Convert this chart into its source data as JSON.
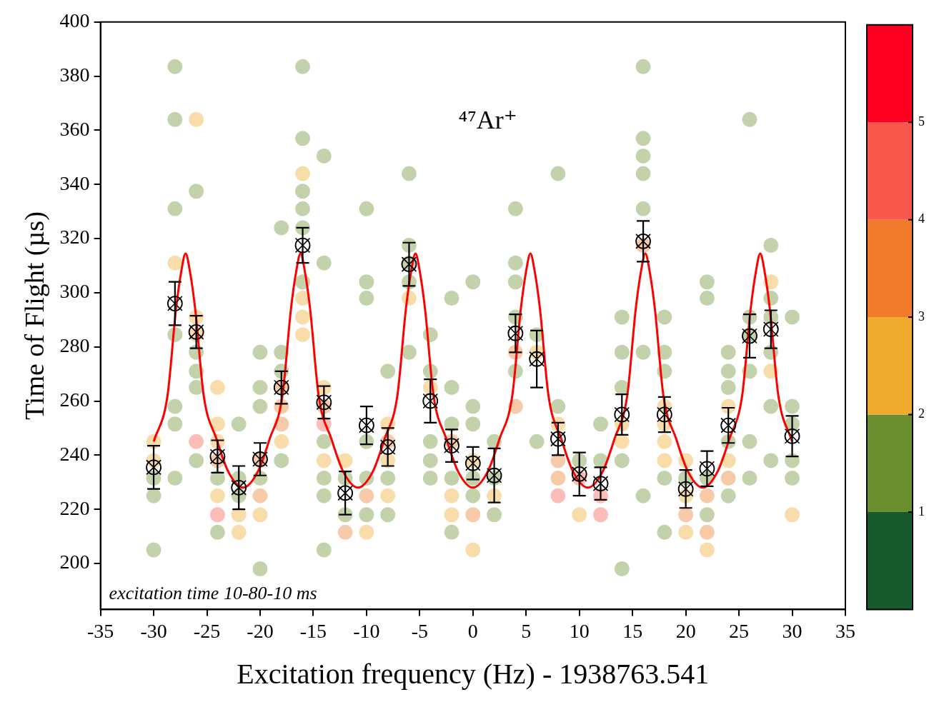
{
  "chart_data": {
    "type": "scatter",
    "xlabel": "Excitation frequency (Hz) - 1938763.541",
    "ylabel": "Time of Flight (µs)",
    "annotations": [
      "⁴⁷Ar⁺",
      "excitation time 10-80-10 ms"
    ],
    "xlim": [
      -35,
      35
    ],
    "xticks": [
      -35,
      -30,
      -25,
      -20,
      -15,
      -10,
      -5,
      0,
      5,
      10,
      15,
      20,
      25,
      30,
      35
    ],
    "ylim": [
      183,
      400
    ],
    "yticks": [
      200,
      220,
      240,
      260,
      280,
      300,
      320,
      340,
      360,
      380,
      400
    ],
    "clim": [
      0,
      6
    ],
    "cticks": [
      1,
      2,
      3,
      4,
      5
    ],
    "grid": false,
    "legend": false,
    "x": [
      -30,
      -28,
      -26,
      -24,
      -22,
      -20,
      -18,
      -16,
      -14,
      -12,
      -10,
      -8,
      -6,
      -4,
      -2,
      0,
      2,
      4,
      6,
      8,
      10,
      12,
      14,
      16,
      18,
      20,
      22,
      24,
      26,
      28,
      30
    ],
    "series": [
      {
        "type": "scatter",
        "marker": "circle",
        "x": [
          -30,
          -30,
          -30,
          -30,
          -30,
          -28,
          -28,
          -28,
          -28,
          -28,
          -28,
          -28,
          -28,
          -26,
          -26,
          -26,
          -26,
          -26,
          -26,
          -26,
          -26,
          -26,
          -24,
          -24,
          -24,
          -24,
          -24,
          -24,
          -24,
          -24,
          -22,
          -22,
          -22,
          -22,
          -22,
          -20,
          -20,
          -20,
          -20,
          -20,
          -20,
          -20,
          -20,
          -18,
          -18,
          -18,
          -18,
          -18,
          -18,
          -18,
          -18,
          -16,
          -16,
          -16,
          -16,
          -16,
          -16,
          -16,
          -16,
          -16,
          -16,
          -14,
          -14,
          -14,
          -14,
          -14,
          -14,
          -14,
          -14,
          -14,
          -14,
          -12,
          -12,
          -12,
          -12,
          -10,
          -10,
          -10,
          -10,
          -10,
          -10,
          -10,
          -10,
          -8,
          -8,
          -8,
          -8,
          -8,
          -8,
          -8,
          -6,
          -6,
          -6,
          -6,
          -6,
          -6,
          -4,
          -4,
          -4,
          -4,
          -4,
          -4,
          -2,
          -2,
          -2,
          -2,
          -2,
          -2,
          -2,
          -2,
          0,
          0,
          0,
          0,
          0,
          0,
          0,
          0,
          2,
          2,
          2,
          2,
          4,
          4,
          4,
          4,
          4,
          4,
          4,
          6,
          6,
          6,
          8,
          8,
          8,
          8,
          8,
          8,
          10,
          10,
          10,
          12,
          12,
          12,
          12,
          14,
          14,
          14,
          14,
          14,
          14,
          14,
          16,
          16,
          16,
          16,
          16,
          16,
          16,
          16,
          18,
          18,
          18,
          18,
          18,
          18,
          18,
          18,
          18,
          20,
          20,
          20,
          20,
          20,
          22,
          22,
          22,
          22,
          22,
          22,
          22,
          24,
          24,
          24,
          24,
          24,
          24,
          24,
          24,
          26,
          26,
          26,
          26,
          26,
          26,
          28,
          28,
          28,
          28,
          28,
          28,
          28,
          28,
          30,
          30,
          30,
          30,
          30,
          30
        ],
        "values": [
          245,
          238,
          231.5,
          225,
          205,
          383.5,
          364,
          331,
          311,
          284.5,
          258,
          251.5,
          231.5,
          364,
          337.5,
          291,
          284.5,
          278,
          271,
          265,
          245,
          238,
          265,
          251.5,
          245,
          238,
          231.5,
          225,
          218,
          211.5,
          251.5,
          231.5,
          225,
          218,
          211.5,
          278,
          265,
          258,
          238,
          231.5,
          225,
          218,
          198,
          324,
          278,
          271,
          265,
          258,
          251.5,
          245,
          238,
          383.5,
          357,
          344,
          337.5,
          331,
          324,
          304,
          298,
          291,
          284.5,
          350.5,
          311,
          265,
          258,
          251.5,
          245,
          238,
          231.5,
          225,
          205,
          238,
          231.5,
          218,
          211.5,
          331,
          304,
          298,
          245,
          231.5,
          225,
          218,
          211.5,
          271,
          251.5,
          245,
          238,
          231.5,
          225,
          218,
          344,
          317.5,
          311,
          304,
          298,
          278,
          284.5,
          271,
          265,
          245,
          238,
          231.5,
          298,
          265,
          251.5,
          245,
          231.5,
          225,
          218,
          211.5,
          304,
          258,
          251.5,
          238,
          231.5,
          225,
          218,
          205,
          245,
          231.5,
          225,
          218,
          331,
          311,
          304,
          291,
          278,
          271,
          258,
          284.5,
          278,
          245,
          344,
          258,
          251.5,
          238,
          231.5,
          225,
          238,
          231.5,
          218,
          251.5,
          238,
          225,
          218,
          291,
          278,
          265,
          251.5,
          245,
          238,
          198,
          383.5,
          357,
          350.5,
          344,
          331,
          317.5,
          278,
          225,
          291,
          278,
          271,
          258,
          251.5,
          245,
          238,
          231.5,
          211.5,
          238,
          231.5,
          225,
          218,
          211.5,
          304,
          298,
          231.5,
          225,
          218,
          211.5,
          205,
          278,
          271,
          265,
          258,
          245,
          238,
          231.5,
          225,
          364,
          291,
          284.5,
          271,
          245,
          231.5,
          317.5,
          304,
          298,
          291,
          278,
          271,
          258,
          238,
          291,
          258,
          251.5,
          238,
          231.5,
          218
        ],
        "colors": [
          "#f8ddab",
          "#f8ddab",
          "#c4d2ab",
          "#c4d2ab",
          "#c4d2ab",
          "#c4d2ab",
          "#c4d2ab",
          "#c4d2ab",
          "#f8ddab",
          "#c4d2ab",
          "#c4d2ab",
          "#c4d2ab",
          "#c4d2ab",
          "#f8ddab",
          "#c4d2ab",
          "#f8ddab",
          "#f8ddab",
          "#c4d2ab",
          "#c4d2ab",
          "#c4d2ab",
          "#fcbcb7",
          "#c4d2ab",
          "#f8ddab",
          "#f8ddab",
          "#f8ddab",
          "#f7caaa",
          "#c4d2ab",
          "#f8ddab",
          "#fcbcb7",
          "#c4d2ab",
          "#c4d2ab",
          "#c4d2ab",
          "#c4d2ab",
          "#f8ddab",
          "#f8ddab",
          "#c4d2ab",
          "#c4d2ab",
          "#c4d2ab",
          "#f7caaa",
          "#c4d2ab",
          "#f7caaa",
          "#f8ddab",
          "#c4d2ab",
          "#c4d2ab",
          "#c4d2ab",
          "#c4d2ab",
          "#f7caaa",
          "#f7caaa",
          "#f7caaa",
          "#f8ddab",
          "#c4d2ab",
          "#c4d2ab",
          "#c4d2ab",
          "#f8ddab",
          "#c4d2ab",
          "#c4d2ab",
          "#c4d2ab",
          "#c4d2ab",
          "#f8ddab",
          "#f8ddab",
          "#f8ddab",
          "#c4d2ab",
          "#c4d2ab",
          "#f8ddab",
          "#f7caaa",
          "#fcbcb7",
          "#c4d2ab",
          "#f8ddab",
          "#c4d2ab",
          "#c4d2ab",
          "#c4d2ab",
          "#f8ddab",
          "#c4d2ab",
          "#c4d2ab",
          "#f7caaa",
          "#c4d2ab",
          "#c4d2ab",
          "#c4d2ab",
          "#c4d2ab",
          "#c4d2ab",
          "#f7caaa",
          "#c4d2ab",
          "#f8ddab",
          "#c4d2ab",
          "#f8ddab",
          "#f7caaa",
          "#f8ddab",
          "#c4d2ab",
          "#f8ddab",
          "#c4d2ab",
          "#c4d2ab",
          "#c4d2ab",
          "#c4d2ab",
          "#c4d2ab",
          "#f8ddab",
          "#c4d2ab",
          "#c4d2ab",
          "#c4d2ab",
          "#f8ddab",
          "#c4d2ab",
          "#c4d2ab",
          "#c4d2ab",
          "#c4d2ab",
          "#c4d2ab",
          "#c4d2ab",
          "#f7caaa",
          "#c4d2ab",
          "#f8ddab",
          "#f8ddab",
          "#c4d2ab",
          "#c4d2ab",
          "#c4d2ab",
          "#c4d2ab",
          "#f8ddab",
          "#c4d2ab",
          "#c4d2ab",
          "#f7caaa",
          "#f8ddab",
          "#c4d2ab",
          "#c4d2ab",
          "#f8ddab",
          "#c4d2ab",
          "#c4d2ab",
          "#c4d2ab",
          "#c4d2ab",
          "#c4d2ab",
          "#f7caaa",
          "#c4d2ab",
          "#f7caaa",
          "#c4d2ab",
          "#f8ddab",
          "#c4d2ab",
          "#c4d2ab",
          "#c4d2ab",
          "#f8ddab",
          "#f7caaa",
          "#f7caaa",
          "#fcbcb7",
          "#c4d2ab",
          "#fcbcb7",
          "#f8ddab",
          "#c4d2ab",
          "#c4d2ab",
          "#fcbcb7",
          "#fcbcb7",
          "#c4d2ab",
          "#c4d2ab",
          "#c4d2ab",
          "#f8ddab",
          "#f8ddab",
          "#c4d2ab",
          "#c4d2ab",
          "#c4d2ab",
          "#c4d2ab",
          "#c4d2ab",
          "#c4d2ab",
          "#c4d2ab",
          "#f7caaa",
          "#c4d2ab",
          "#c4d2ab",
          "#c4d2ab",
          "#c4d2ab",
          "#c4d2ab",
          "#f8ddab",
          "#f8ddab",
          "#f8ddab",
          "#f8ddab",
          "#c4d2ab",
          "#c4d2ab",
          "#f8ddab",
          "#c4d2ab",
          "#f8ddab",
          "#f7caaa",
          "#f8ddab",
          "#c4d2ab",
          "#c4d2ab",
          "#c4d2ab",
          "#f7caaa",
          "#c4d2ab",
          "#f7caaa",
          "#f8ddab",
          "#c4d2ab",
          "#c4d2ab",
          "#c4d2ab",
          "#f8ddab",
          "#c4d2ab",
          "#f8ddab",
          "#f7caaa",
          "#c4d2ab",
          "#c4d2ab",
          "#c4d2ab",
          "#c4d2ab",
          "#c4d2ab",
          "#c4d2ab",
          "#c4d2ab",
          "#c4d2ab",
          "#f8ddab",
          "#c4d2ab",
          "#c4d2ab",
          "#c4d2ab",
          "#f8ddab",
          "#c4d2ab",
          "#c4d2ab",
          "#c4d2ab",
          "#c4d2ab",
          "#c4d2ab",
          "#c4d2ab",
          "#c4d2ab",
          "#f8ddab"
        ],
        "name": null
      },
      {
        "type": "line",
        "color": "#ff0000",
        "marker": "none",
        "line_style": "solid",
        "x": [
          -30,
          -28.7,
          -27.9,
          -27.4,
          -27,
          -26.6,
          -26.1,
          -25.3,
          -24.1,
          -23,
          -21.6,
          -20.2,
          -19.1,
          -17.9,
          -17.1,
          -16.6,
          -16.2,
          -15.8,
          -15.3,
          -14.5,
          -13.3,
          -12.2,
          -10.8,
          -9.4,
          -8.3,
          -7.1,
          -6.3,
          -5.8,
          -5.4,
          -5,
          -4.5,
          -3.7,
          -2.5,
          -1.4,
          0,
          1.4,
          2.5,
          3.7,
          4.5,
          5,
          5.4,
          5.8,
          6.3,
          7.1,
          8.3,
          9.4,
          10.8,
          12.2,
          13.3,
          14.5,
          15.3,
          15.8,
          16.2,
          16.6,
          17.1,
          17.9,
          19.1,
          20.2,
          21.6,
          23,
          24.1,
          25.3,
          26.1,
          26.6,
          27,
          27.4,
          27.9,
          28.7,
          30
        ],
        "values": [
          245,
          262,
          294,
          308,
          314.5,
          308,
          294,
          262,
          246,
          234,
          228,
          234,
          246,
          262,
          294,
          308,
          314.5,
          308,
          294,
          262,
          246,
          234,
          228,
          234,
          246,
          262,
          294,
          308,
          314.5,
          308,
          294,
          262,
          246,
          234,
          228,
          234,
          246,
          262,
          294,
          308,
          314.5,
          308,
          294,
          262,
          246,
          234,
          228,
          234,
          246,
          262,
          294,
          308,
          314.5,
          308,
          294,
          262,
          246,
          234,
          228,
          234,
          246,
          262,
          294,
          308,
          314.5,
          308,
          294,
          262,
          245
        ]
      },
      {
        "type": "scatter",
        "color": "#000000",
        "marker": "circle",
        "values": [
          235.5,
          296,
          285.5,
          239.5,
          228,
          238.5,
          265,
          317.5,
          259.5,
          226,
          251,
          243,
          310.5,
          260,
          243.5,
          237,
          232.5,
          285,
          275.5,
          246,
          233,
          229.5,
          255,
          319,
          255,
          227.5,
          235,
          251,
          284,
          286.5,
          247
        ],
        "errors": [
          8,
          8,
          6,
          6,
          8,
          6,
          6,
          6.5,
          6,
          8,
          7,
          7,
          8,
          8,
          6,
          6,
          10,
          7,
          10.5,
          6,
          8,
          6,
          7.5,
          7.5,
          6.5,
          7,
          6.5,
          6.5,
          8,
          7,
          7.5
        ]
      }
    ]
  }
}
